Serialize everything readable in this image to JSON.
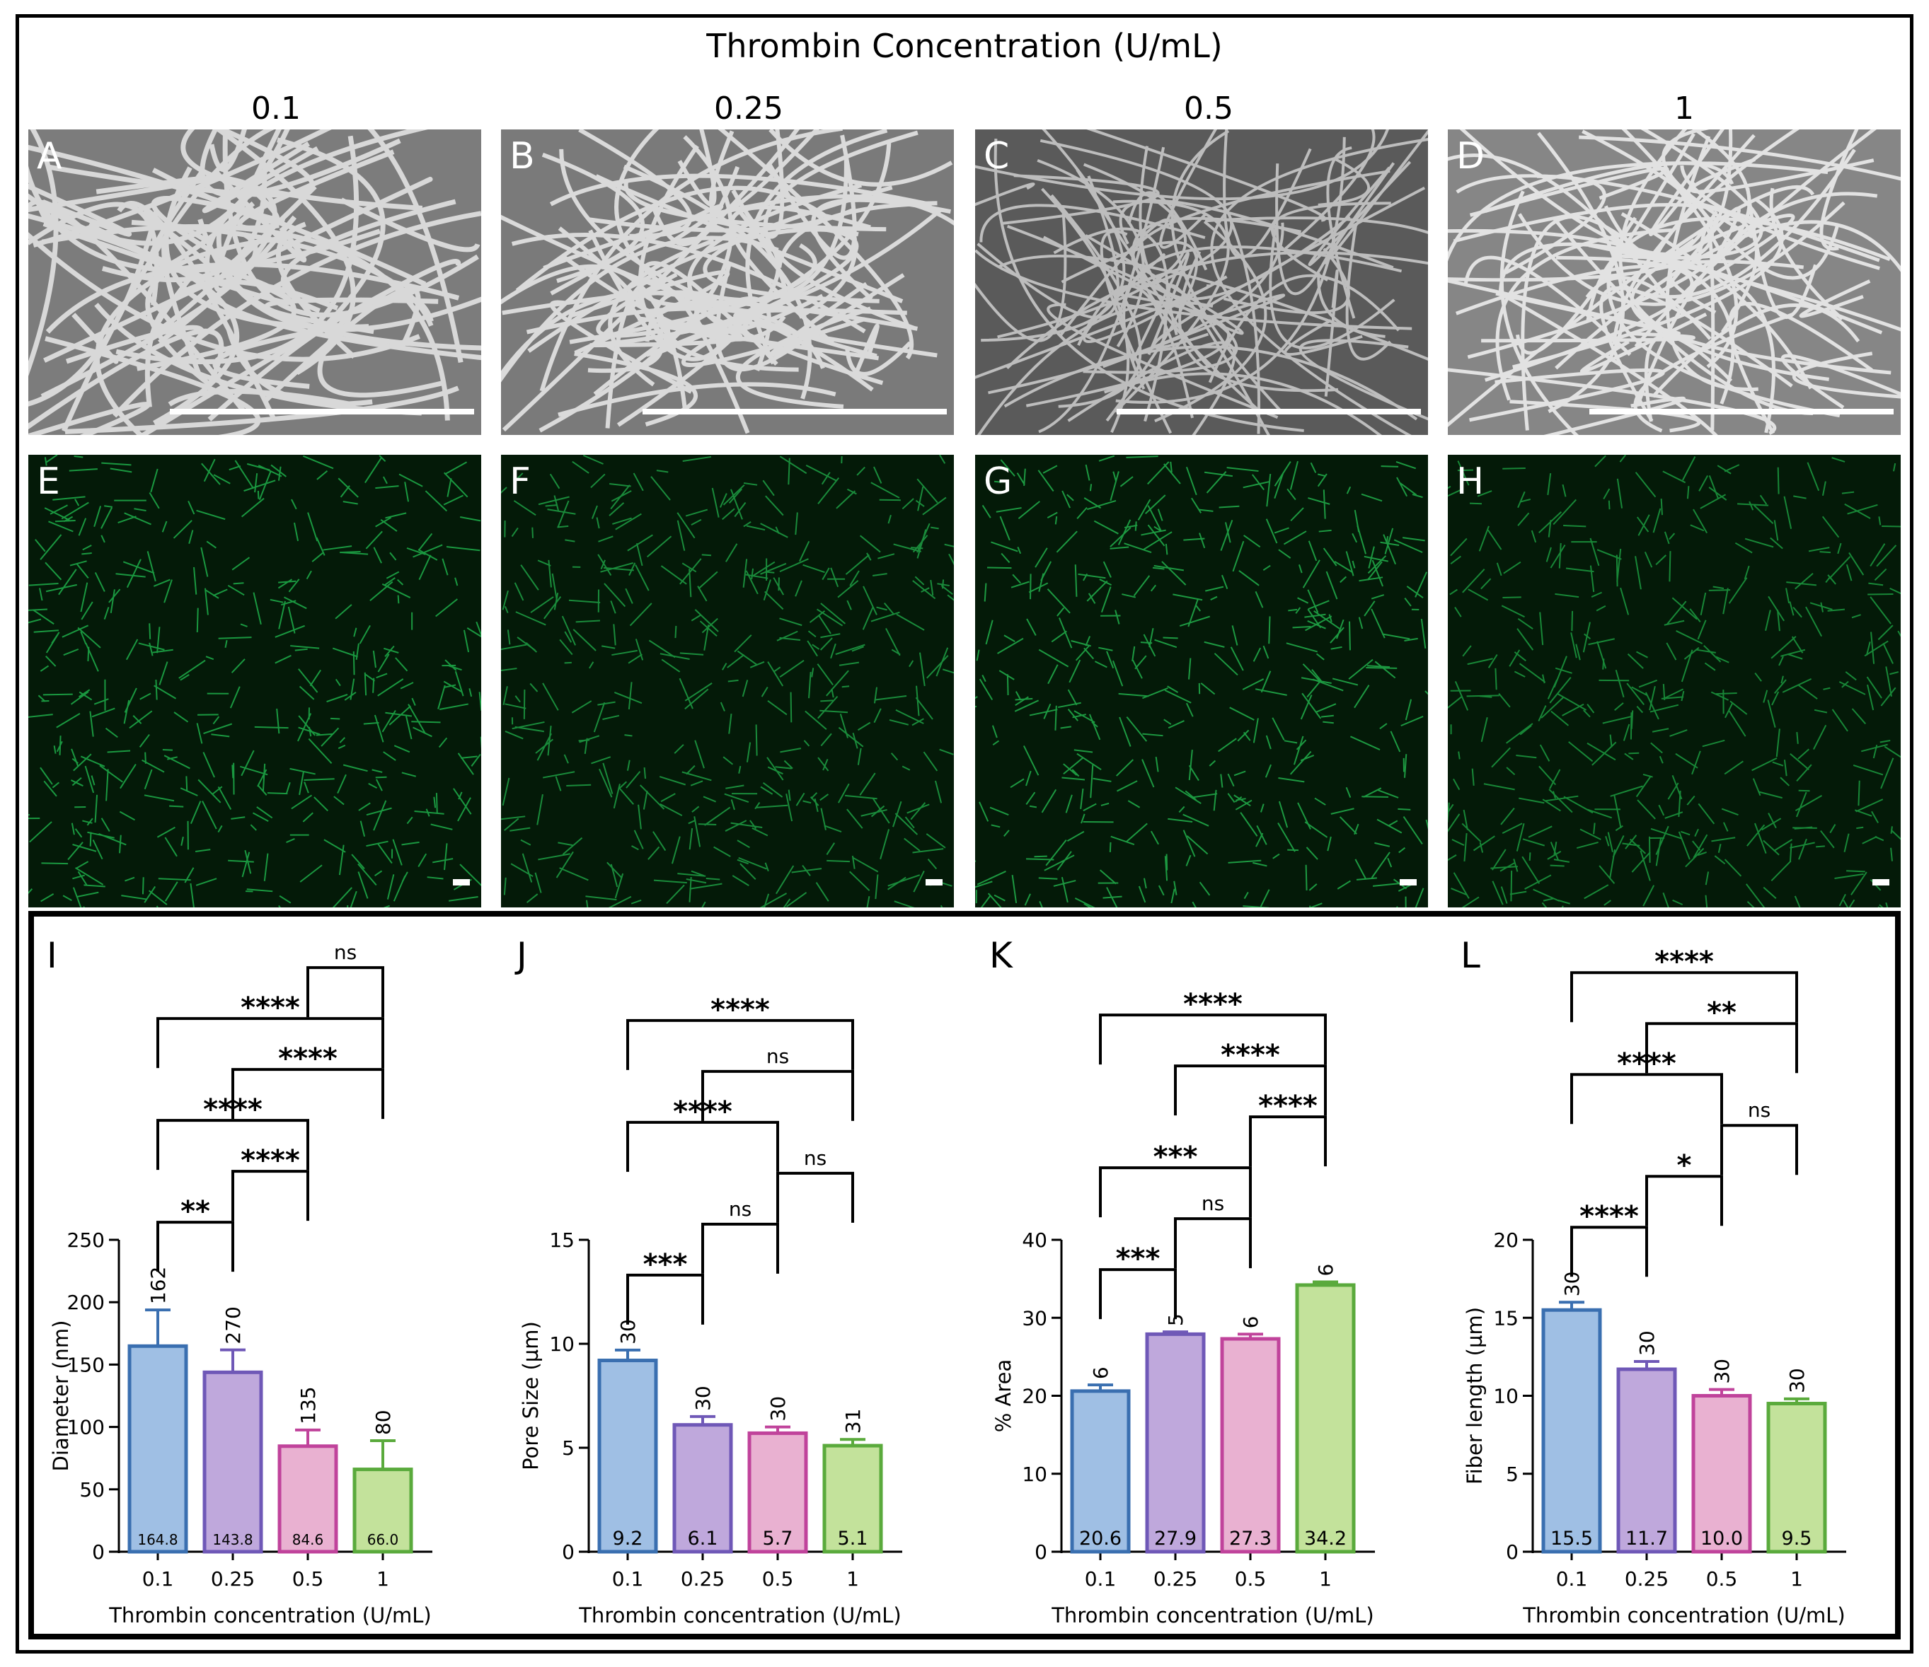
{
  "figure": {
    "title": "Thrombin Concentration (U/mL)",
    "columns": [
      "0.1",
      "0.25",
      "0.5",
      "1"
    ],
    "sem_labels": [
      "A",
      "B",
      "C",
      "D"
    ],
    "confocal_labels": [
      "E",
      "F",
      "G",
      "H"
    ]
  },
  "chart_data": [
    {
      "type": "bar",
      "panel": "I",
      "xlabel": "Thrombin concentration (U/mL)",
      "ylabel": "Diameter (nm)",
      "ylim": [
        0,
        250
      ],
      "yticks": [
        0,
        50,
        100,
        150,
        200,
        250
      ],
      "categories": [
        "0.1",
        "0.25",
        "0.5",
        "1"
      ],
      "values": [
        164.8,
        143.8,
        84.6,
        66.0
      ],
      "value_labels": [
        "164.8",
        "143.8",
        "84.6",
        "66.0"
      ],
      "errors": [
        29,
        18,
        13,
        23
      ],
      "n": [
        "162",
        "270",
        "135",
        "80"
      ],
      "colors": [
        "#3a6fb0",
        "#6f58b7",
        "#c0439b",
        "#5aaa3c"
      ],
      "fills": [
        "#9fbfe4",
        "#bfa8dc",
        "#e9b1d1",
        "#c3e29b"
      ],
      "comparisons": [
        {
          "from": 0,
          "to": 1,
          "label": "**"
        },
        {
          "from": 1,
          "to": 2,
          "label": "****"
        },
        {
          "from": 0,
          "to": 2,
          "label": "****"
        },
        {
          "from": 1,
          "to": 3,
          "label": "****"
        },
        {
          "from": 0,
          "to": 3,
          "label": "****"
        },
        {
          "from": 2,
          "to": 3,
          "label": "ns"
        }
      ]
    },
    {
      "type": "bar",
      "panel": "J",
      "xlabel": "Thrombin concentration (U/mL)",
      "ylabel": "Pore Size (µm)",
      "ylim": [
        0,
        15
      ],
      "yticks": [
        0,
        5,
        10,
        15
      ],
      "categories": [
        "0.1",
        "0.25",
        "0.5",
        "1"
      ],
      "values": [
        9.2,
        6.1,
        5.7,
        5.1
      ],
      "value_labels": [
        "9.2",
        "6.1",
        "5.7",
        "5.1"
      ],
      "errors": [
        0.5,
        0.4,
        0.3,
        0.3
      ],
      "n": [
        "30",
        "30",
        "30",
        "31"
      ],
      "colors": [
        "#3a6fb0",
        "#6f58b7",
        "#c0439b",
        "#5aaa3c"
      ],
      "fills": [
        "#9fbfe4",
        "#bfa8dc",
        "#e9b1d1",
        "#c3e29b"
      ],
      "comparisons": [
        {
          "from": 0,
          "to": 1,
          "label": "***"
        },
        {
          "from": 1,
          "to": 2,
          "label": "ns"
        },
        {
          "from": 2,
          "to": 3,
          "label": "ns"
        },
        {
          "from": 0,
          "to": 2,
          "label": "****"
        },
        {
          "from": 1,
          "to": 3,
          "label": "ns"
        },
        {
          "from": 0,
          "to": 3,
          "label": "****"
        }
      ]
    },
    {
      "type": "bar",
      "panel": "K",
      "xlabel": "Thrombin concentration (U/mL)",
      "ylabel": "% Area",
      "ylim": [
        0,
        40
      ],
      "yticks": [
        0,
        10,
        20,
        30,
        40
      ],
      "categories": [
        "0.1",
        "0.25",
        "0.5",
        "1"
      ],
      "values": [
        20.6,
        27.9,
        27.3,
        34.2
      ],
      "value_labels": [
        "20.6",
        "27.9",
        "27.3",
        "34.2"
      ],
      "errors": [
        0.8,
        0.3,
        0.6,
        0.4
      ],
      "n": [
        "6",
        "5",
        "6",
        "6"
      ],
      "colors": [
        "#3a6fb0",
        "#6f58b7",
        "#c0439b",
        "#5aaa3c"
      ],
      "fills": [
        "#9fbfe4",
        "#bfa8dc",
        "#e9b1d1",
        "#c3e29b"
      ],
      "comparisons": [
        {
          "from": 0,
          "to": 1,
          "label": "***"
        },
        {
          "from": 1,
          "to": 2,
          "label": "ns"
        },
        {
          "from": 0,
          "to": 2,
          "label": "***"
        },
        {
          "from": 2,
          "to": 3,
          "label": "****"
        },
        {
          "from": 1,
          "to": 3,
          "label": "****"
        },
        {
          "from": 0,
          "to": 3,
          "label": "****"
        }
      ]
    },
    {
      "type": "bar",
      "panel": "L",
      "xlabel": "Thrombin concentration (U/mL)",
      "ylabel": "Fiber length (µm)",
      "ylim": [
        0,
        20
      ],
      "yticks": [
        0,
        5,
        10,
        15,
        20
      ],
      "categories": [
        "0.1",
        "0.25",
        "0.5",
        "1"
      ],
      "values": [
        15.5,
        11.7,
        10.0,
        9.5
      ],
      "value_labels": [
        "15.5",
        "11.7",
        "10.0",
        "9.5"
      ],
      "errors": [
        0.5,
        0.5,
        0.4,
        0.3
      ],
      "n": [
        "30",
        "30",
        "30",
        "30"
      ],
      "colors": [
        "#3a6fb0",
        "#6f58b7",
        "#c0439b",
        "#5aaa3c"
      ],
      "fills": [
        "#9fbfe4",
        "#bfa8dc",
        "#e9b1d1",
        "#c3e29b"
      ],
      "comparisons": [
        {
          "from": 0,
          "to": 1,
          "label": "****"
        },
        {
          "from": 1,
          "to": 2,
          "label": "*"
        },
        {
          "from": 2,
          "to": 3,
          "label": "ns"
        },
        {
          "from": 0,
          "to": 2,
          "label": "****"
        },
        {
          "from": 1,
          "to": 3,
          "label": "**"
        },
        {
          "from": 0,
          "to": 3,
          "label": "****"
        }
      ]
    }
  ]
}
